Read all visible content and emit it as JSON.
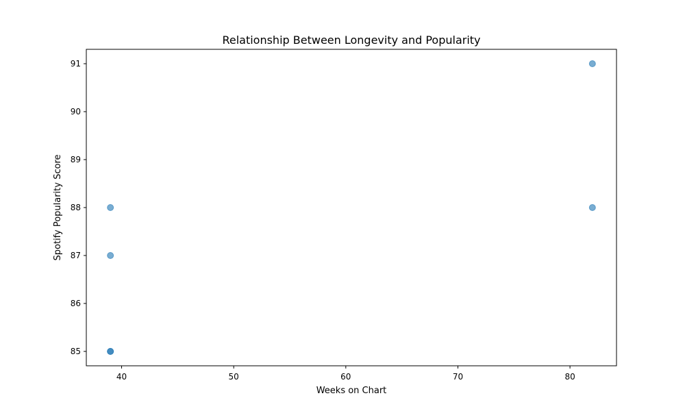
{
  "chart_data": {
    "type": "scatter",
    "title": "Relationship Between Longevity and Popularity",
    "xlabel": "Weeks on Chart",
    "ylabel": "Spotify Popularity Score",
    "xlim": [
      36.85,
      84.15
    ],
    "ylim": [
      84.7,
      91.3
    ],
    "xticks": [
      40,
      50,
      60,
      70,
      80
    ],
    "yticks": [
      85,
      86,
      87,
      88,
      89,
      90,
      91
    ],
    "grid": false,
    "point_color": "#1f77b4",
    "point_alpha": 0.6,
    "points": [
      {
        "x": 82,
        "y": 91
      },
      {
        "x": 82,
        "y": 88
      },
      {
        "x": 39,
        "y": 88
      },
      {
        "x": 39,
        "y": 87
      },
      {
        "x": 39,
        "y": 85
      },
      {
        "x": 39,
        "y": 85
      }
    ]
  }
}
